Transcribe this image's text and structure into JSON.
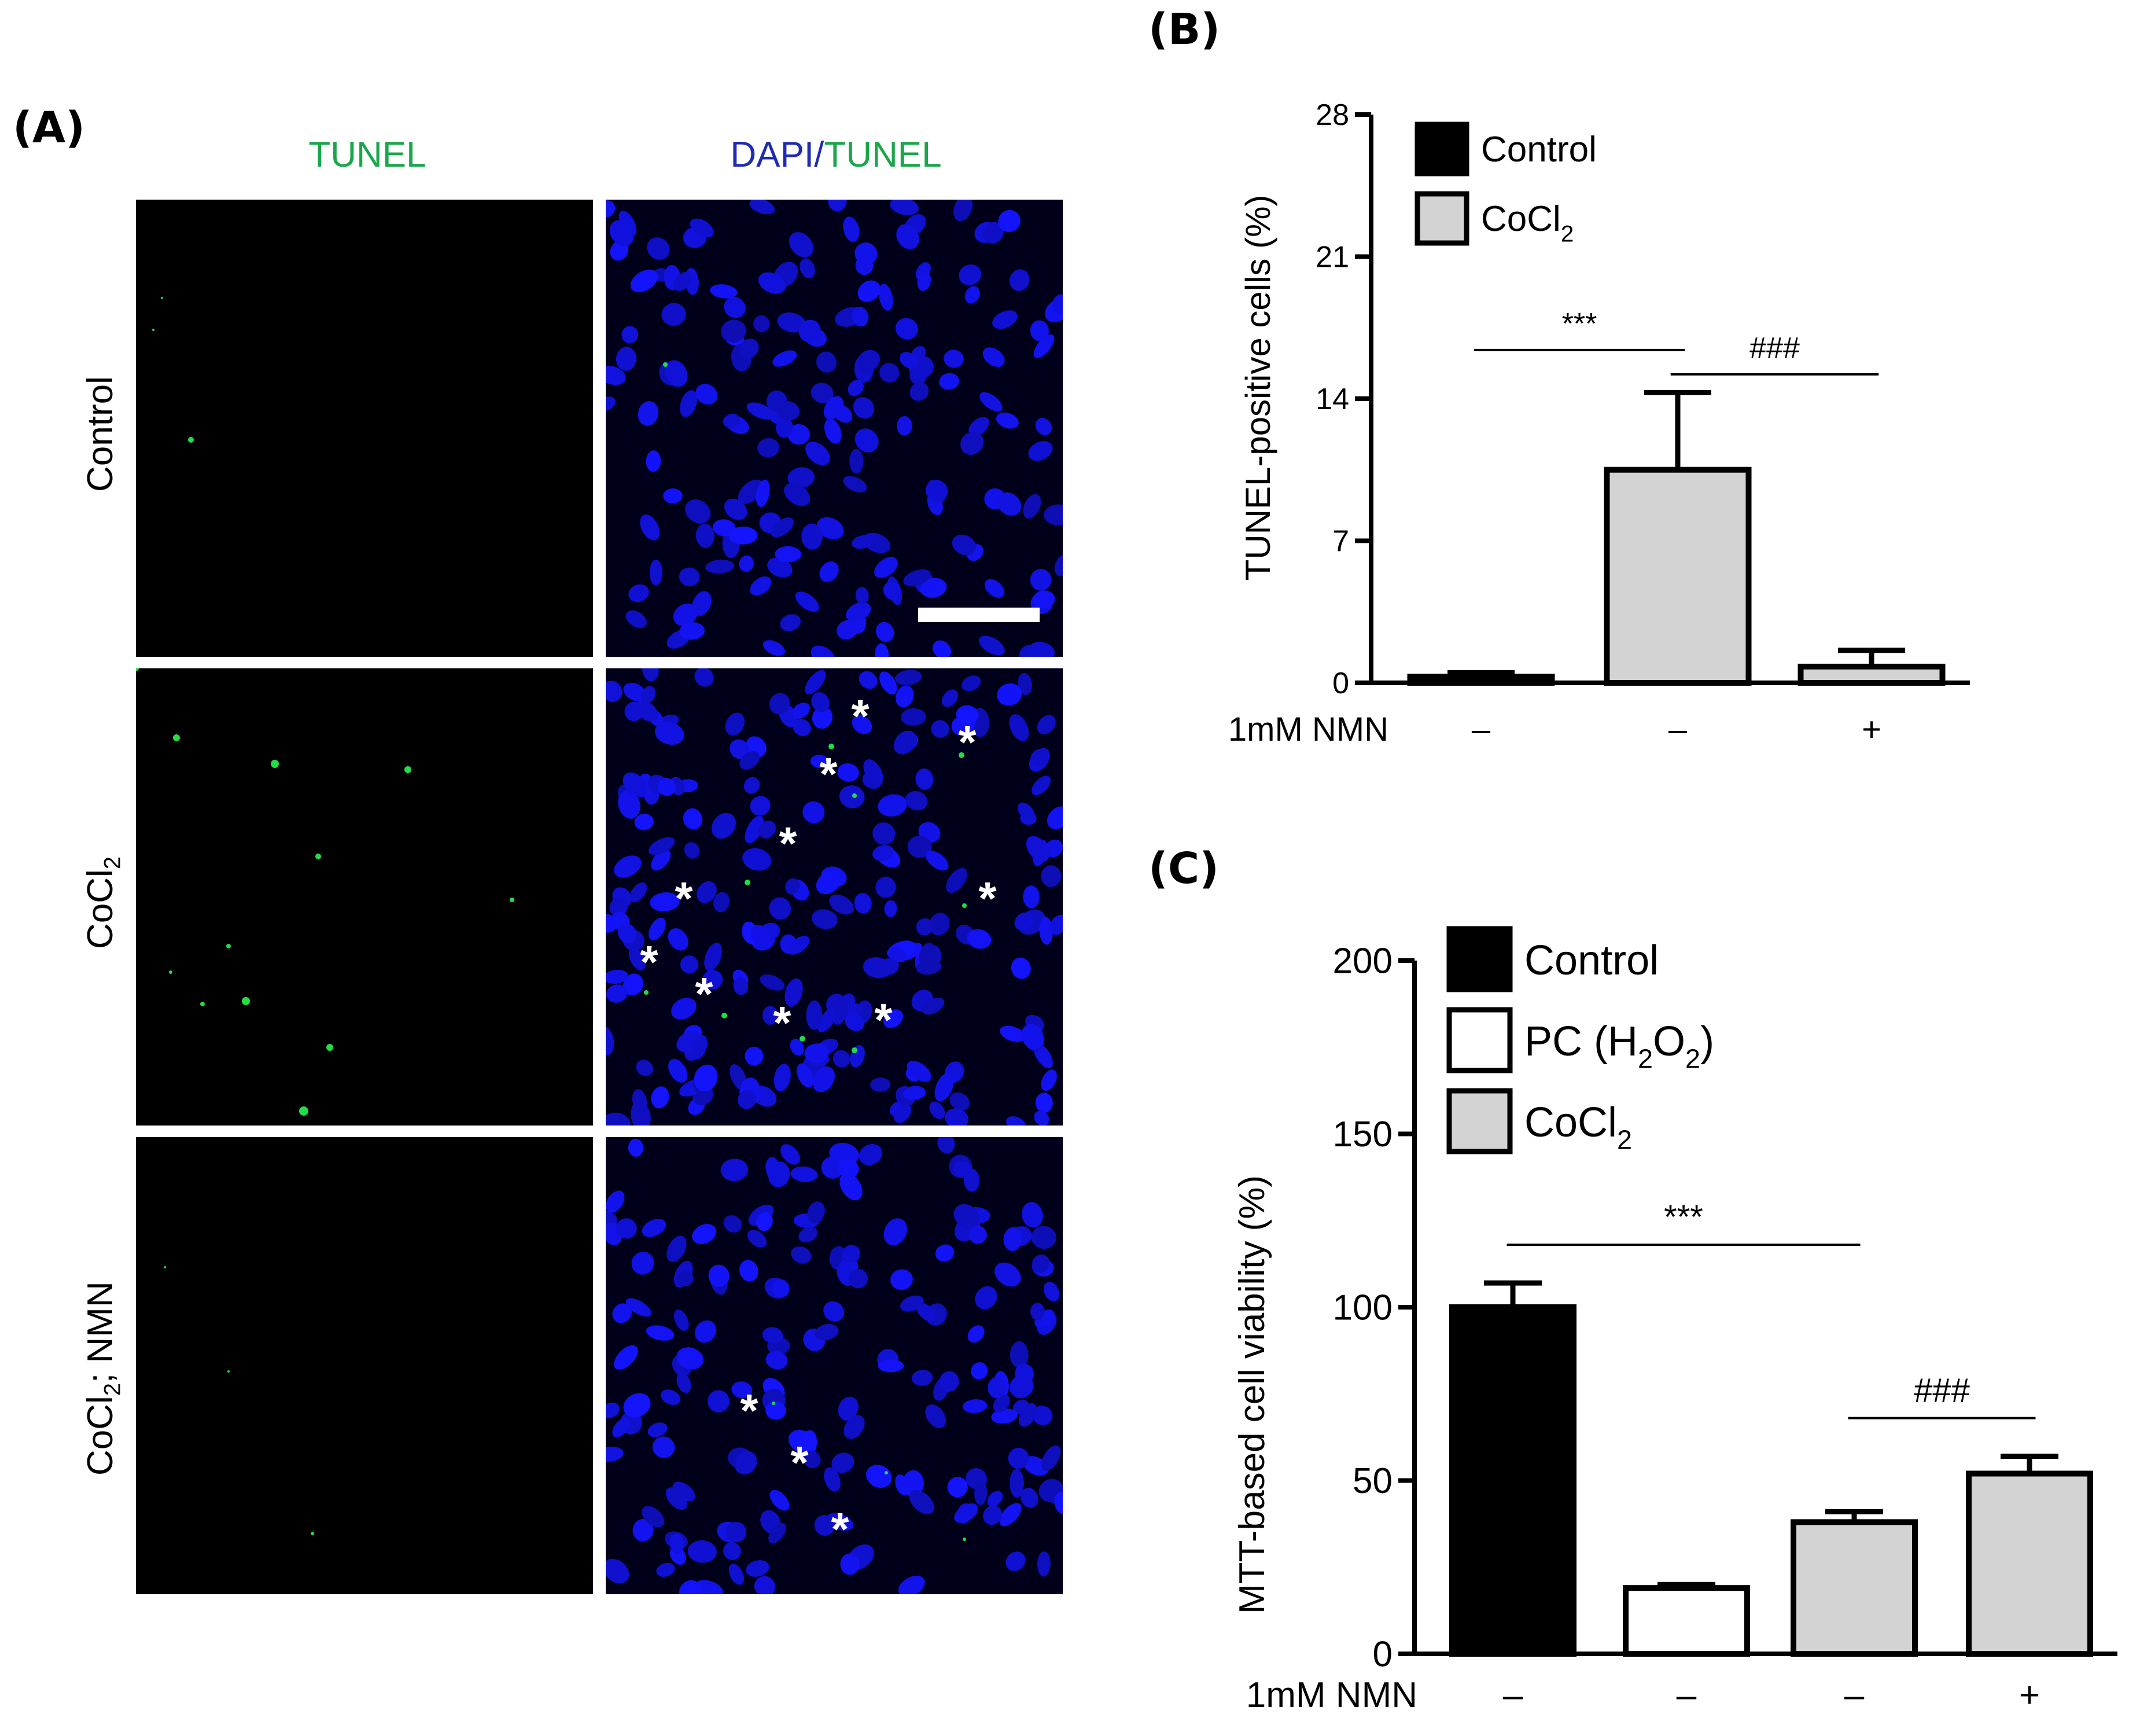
{
  "panel_a": {
    "letter": "(A)",
    "col_titles": [
      "TUNEL",
      "DAPI",
      "TUNEL"
    ],
    "col_title_separator": "/",
    "rows": [
      {
        "label": "Control"
      },
      {
        "label_main": "CoCl",
        "label_sub": "2"
      },
      {
        "label_main": "CoCl",
        "label_sub": "2",
        "label_suffix": "; NMN"
      }
    ],
    "marker_glyph": "*",
    "colors": {
      "tunel_green": "#1aa64a",
      "dapi_blue": "#1f2bb5",
      "nuclei": "#1414ff",
      "background": "#000000"
    }
  },
  "panel_b": {
    "letter": "(B)",
    "chart_data": {
      "type": "bar",
      "ylabel": "TUNEL-positive cells (%)",
      "ylim": [
        0,
        28
      ],
      "yticks": [
        "0",
        "7",
        "14",
        "21",
        "28"
      ],
      "xrow_label": "1mM NMN",
      "xrow_values": [
        "–",
        "–",
        "+"
      ],
      "legend": [
        {
          "name": "Control",
          "sub": ""
        },
        {
          "name": "CoCl",
          "sub": "2"
        }
      ],
      "legend_position": "top-left",
      "bars": [
        {
          "value": 0.3,
          "error": 0.2,
          "fill": "#000000"
        },
        {
          "value": 10.5,
          "error": 3.8,
          "fill": "#d3d3d3"
        },
        {
          "value": 0.8,
          "error": 0.8,
          "fill": "#d3d3d3"
        }
      ],
      "annotations": [
        {
          "text": "***",
          "from": 0,
          "to": 1,
          "y": 16.4
        },
        {
          "text": "###",
          "from": 1,
          "to": 2,
          "y": 15.2
        }
      ]
    }
  },
  "panel_c": {
    "letter": "(C)",
    "chart_data": {
      "type": "bar",
      "ylabel": "MTT-based cell viability (%)",
      "ylim": [
        0,
        200
      ],
      "yticks": [
        "0",
        "50",
        "100",
        "150",
        "200"
      ],
      "xrow_label": "1mM NMN",
      "xrow_values": [
        "–",
        "–",
        "–",
        "+"
      ],
      "legend": [
        {
          "name": "Control"
        },
        {
          "name": "PC (H",
          "sub": "2",
          "mid": "O",
          "sub2": "2",
          "end": ")"
        },
        {
          "name": "CoCl",
          "sub": "2"
        }
      ],
      "legend_position": "top-left",
      "bars": [
        {
          "value": 100,
          "error": 7,
          "fill": "#000000"
        },
        {
          "value": 19,
          "error": 1,
          "fill": "#ffffff"
        },
        {
          "value": 38,
          "error": 3,
          "fill": "#d3d3d3"
        },
        {
          "value": 52,
          "error": 5,
          "fill": "#d3d3d3"
        }
      ],
      "annotations": [
        {
          "text": "***",
          "from": 0,
          "to": 2,
          "y": 118
        },
        {
          "text": "###",
          "from": 2,
          "to": 3,
          "y": 68
        }
      ]
    }
  }
}
